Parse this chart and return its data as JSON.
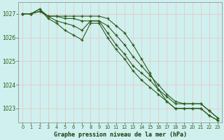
{
  "bg_color": "#cff0ee",
  "grid_color": "#b8ddd8",
  "line_color": "#2d5a1b",
  "marker_color": "#2d5a1b",
  "xlabel": "Graphe pression niveau de la mer (hPa)",
  "xlabel_color": "#1a3a0a",
  "ylim": [
    1022.4,
    1027.5
  ],
  "yticks": [
    1023,
    1024,
    1025,
    1026,
    1027
  ],
  "xlim": [
    -0.5,
    23.5
  ],
  "xticks": [
    0,
    1,
    2,
    3,
    4,
    5,
    6,
    7,
    8,
    9,
    10,
    11,
    12,
    13,
    14,
    15,
    16,
    17,
    18,
    19,
    20,
    21,
    22,
    23
  ],
  "series": [
    [
      1027.0,
      1027.0,
      1027.1,
      1026.9,
      1026.9,
      1026.8,
      1026.8,
      1026.7,
      1026.7,
      1026.7,
      1026.5,
      1026.1,
      1025.7,
      1025.2,
      1024.8,
      1024.4,
      1024.0,
      1023.6,
      1023.3,
      1023.2,
      1023.2,
      1023.2,
      1022.9,
      1022.6
    ],
    [
      1027.0,
      1027.0,
      1027.1,
      1026.9,
      1026.7,
      1026.6,
      1026.5,
      1026.3,
      1026.7,
      1026.7,
      1026.2,
      1025.7,
      1025.3,
      1024.8,
      1024.5,
      1024.2,
      1023.8,
      1023.5,
      1023.2,
      1023.2,
      1023.2,
      1023.2,
      1022.9,
      1022.6
    ],
    [
      1027.0,
      1027.0,
      1027.2,
      1026.8,
      1026.6,
      1026.3,
      1026.1,
      1025.9,
      1026.6,
      1026.6,
      1026.0,
      1025.5,
      1025.1,
      1024.6,
      1024.2,
      1023.9,
      1023.6,
      1023.3,
      1023.0,
      1023.0,
      1023.0,
      1023.0,
      1022.7,
      1022.5
    ],
    [
      1027.0,
      1027.0,
      1027.2,
      1026.9,
      1026.9,
      1026.9,
      1026.9,
      1026.9,
      1026.9,
      1026.9,
      1026.8,
      1026.5,
      1026.2,
      1025.7,
      1025.1,
      1024.5,
      1023.8,
      1023.3,
      1023.0,
      1023.0,
      1023.0,
      1023.0,
      1022.7,
      1022.5
    ]
  ]
}
